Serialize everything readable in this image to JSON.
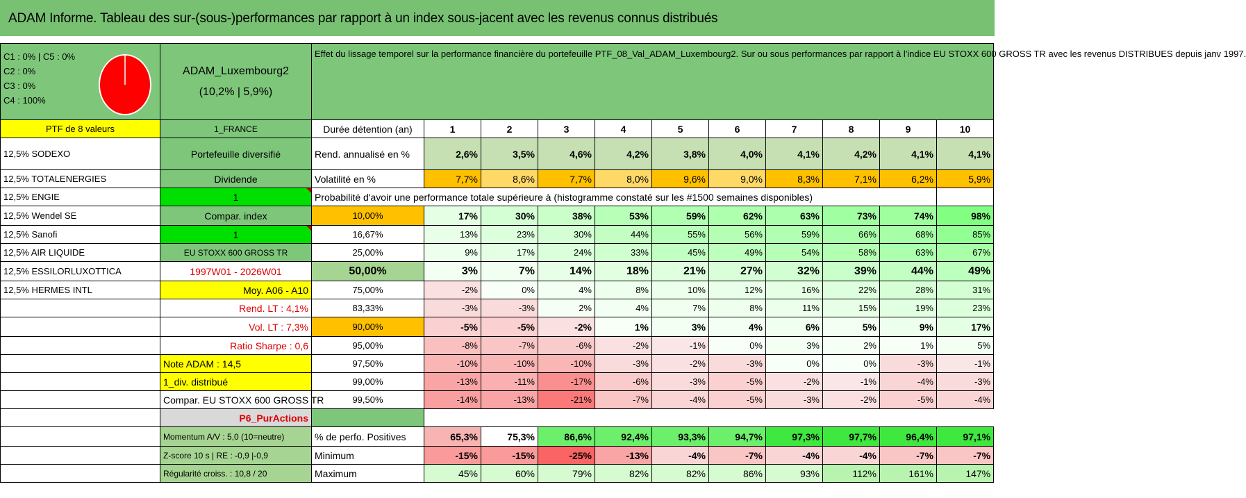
{
  "title": "ADAM Informe. Tableau des sur-(sous-)performances par rapport à un index sous-jacent avec les revenus connus distribués",
  "pie": {
    "legend": [
      "C1 : 0% | C5 : 0%",
      "C2 : 0%",
      "C3 : 0%",
      "C4 : 100%"
    ],
    "color": "#ff0000"
  },
  "portfolio": {
    "name": "ADAM_Luxembourg2",
    "perf": "(10,2% | 5,9%)",
    "description": "Effet du lissage temporel sur la performance financière du portefeuille PTF_08_Val_ADAM_Luxembourg2. Sur ou sous performances par rapport à l'indice EU STOXX 600 GROSS TR avec les revenus DISTRIBUES depuis janv 1997."
  },
  "holdings_header": "PTF de 8 valeurs",
  "holdings": [
    "12,5% SODEXO",
    "12,5% TOTALENERGIES",
    "12,5% ENGIE",
    "12,5% Wendel SE",
    "12,5% Sanofi",
    "12,5% AIR LIQUIDE",
    "12,5% ESSILORLUXOTTICA",
    "12,5% HERMES INTL"
  ],
  "info": {
    "country": "1_FRANCE",
    "type": "Portefeuille diversifié",
    "dividend_label": "Dividende",
    "dividend_value": "1",
    "compar_label": "Compar. index",
    "compar_value": "1",
    "index_name": "EU STOXX 600 GROSS TR",
    "period": "1997W01 - 2026W01",
    "moy": "Moy. A06 - A10",
    "rend_lt": "Rend. LT : 4,1%",
    "vol_lt": "Vol. LT : 7,3%",
    "sharpe": "Ratio Sharpe : 0,6",
    "note": "Note ADAM : 14,5",
    "div": "1_div. distribué",
    "compar_full": "Compar. EU STOXX 600 GROSS TR",
    "p6": "P6_PurActions",
    "momentum": "Momentum A/V : 5,0 (10=neutre)",
    "zscore": "Z-score 10 s | RE : -0,9 |-0,9",
    "regularite": "Régularité croiss. : 10,8 / 20"
  },
  "table": {
    "duration_label": "Durée détention (an)",
    "years": [
      "1",
      "2",
      "3",
      "4",
      "5",
      "6",
      "7",
      "8",
      "9",
      "10"
    ],
    "rend_label": "Rend. annualisé en %",
    "rend": [
      "2,6%",
      "3,5%",
      "4,6%",
      "4,2%",
      "3,8%",
      "4,0%",
      "4,1%",
      "4,2%",
      "4,1%",
      "4,1%"
    ],
    "vol_label": "Volatilité en %",
    "vol": [
      "7,7%",
      "8,6%",
      "7,7%",
      "8,0%",
      "9,6%",
      "9,0%",
      "8,3%",
      "7,1%",
      "6,2%",
      "5,9%"
    ],
    "prob_title": "Probabilité d'avoir une performance totale supérieure à (histogramme constaté sur les #1500 semaines disponibles)",
    "prob_rows": [
      {
        "label": "10,00%",
        "values": [
          "17%",
          "30%",
          "38%",
          "53%",
          "59%",
          "62%",
          "63%",
          "73%",
          "74%",
          "98%"
        ]
      },
      {
        "label": "16,67%",
        "values": [
          "13%",
          "23%",
          "30%",
          "44%",
          "55%",
          "56%",
          "59%",
          "66%",
          "68%",
          "85%"
        ]
      },
      {
        "label": "25,00%",
        "values": [
          "9%",
          "17%",
          "24%",
          "33%",
          "45%",
          "49%",
          "54%",
          "58%",
          "63%",
          "67%"
        ]
      },
      {
        "label": "50,00%",
        "values": [
          "3%",
          "7%",
          "14%",
          "18%",
          "21%",
          "27%",
          "32%",
          "39%",
          "44%",
          "49%"
        ]
      },
      {
        "label": "75,00%",
        "values": [
          "-2%",
          "0%",
          "4%",
          "8%",
          "10%",
          "12%",
          "16%",
          "22%",
          "28%",
          "31%"
        ]
      },
      {
        "label": "83,33%",
        "values": [
          "-3%",
          "-3%",
          "2%",
          "4%",
          "7%",
          "8%",
          "11%",
          "15%",
          "19%",
          "23%"
        ]
      },
      {
        "label": "90,00%",
        "values": [
          "-5%",
          "-5%",
          "-2%",
          "1%",
          "3%",
          "4%",
          "6%",
          "5%",
          "9%",
          "17%"
        ]
      },
      {
        "label": "95,00%",
        "values": [
          "-8%",
          "-7%",
          "-6%",
          "-2%",
          "-1%",
          "0%",
          "3%",
          "2%",
          "1%",
          "5%"
        ]
      },
      {
        "label": "97,50%",
        "values": [
          "-10%",
          "-10%",
          "-10%",
          "-3%",
          "-2%",
          "-3%",
          "0%",
          "0%",
          "-3%",
          "-1%"
        ]
      },
      {
        "label": "99,00%",
        "values": [
          "-13%",
          "-11%",
          "-17%",
          "-6%",
          "-3%",
          "-5%",
          "-2%",
          "-1%",
          "-4%",
          "-3%"
        ]
      },
      {
        "label": "99,50%",
        "values": [
          "-14%",
          "-13%",
          "-21%",
          "-7%",
          "-4%",
          "-5%",
          "-3%",
          "-2%",
          "-5%",
          "-4%"
        ]
      }
    ],
    "pos_label": "% de perfo. Positives",
    "pos": [
      "65,3%",
      "75,3%",
      "86,6%",
      "92,4%",
      "93,3%",
      "94,7%",
      "97,3%",
      "97,7%",
      "96,4%",
      "97,1%"
    ],
    "min_label": "Minimum",
    "min": [
      "-15%",
      "-15%",
      "-25%",
      "-13%",
      "-4%",
      "-7%",
      "-4%",
      "-4%",
      "-7%",
      "-7%"
    ],
    "max_label": "Maximum",
    "max": [
      "45%",
      "60%",
      "79%",
      "82%",
      "82%",
      "86%",
      "93%",
      "112%",
      "161%",
      "147%"
    ]
  }
}
